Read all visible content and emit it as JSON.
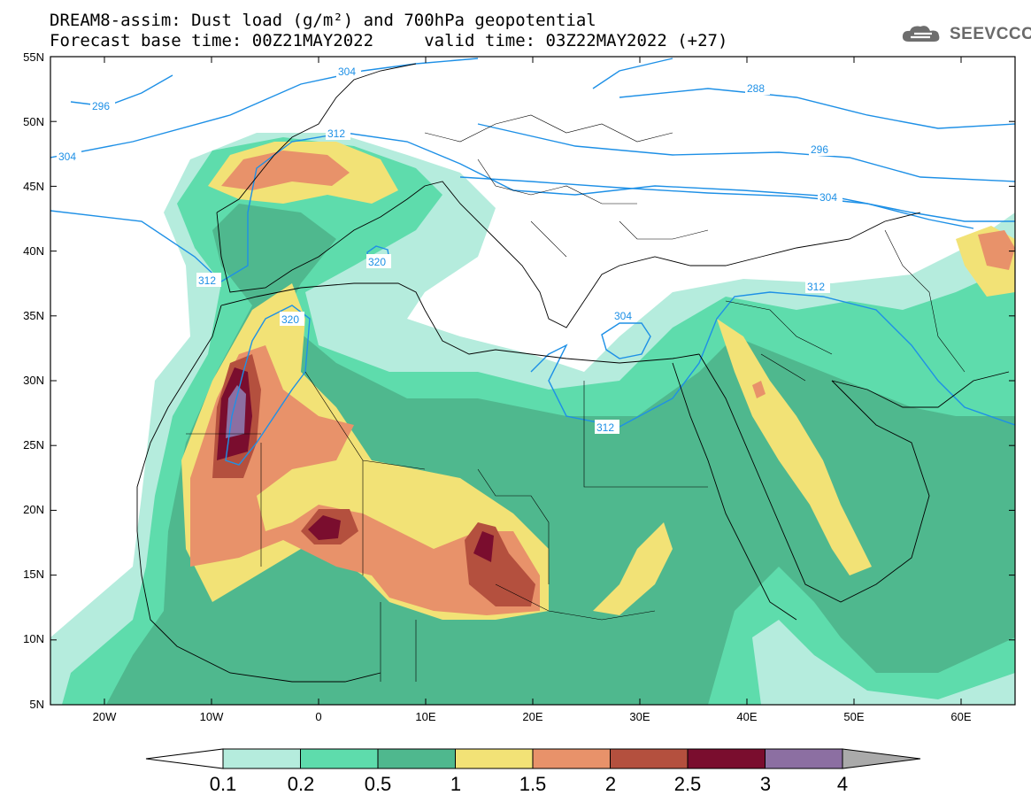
{
  "header": {
    "title_line1": "DREAM8-assim: Dust load (g/m²) and 700hPa geopotential",
    "title_line2": "Forecast base time: 00Z21MAY2022     valid time: 03Z22MAY2022 (+27)",
    "logo_text": "SEEVCCC"
  },
  "map": {
    "lat_ticks": [
      "55N",
      "50N",
      "45N",
      "40N",
      "35N",
      "30N",
      "25N",
      "20N",
      "15N",
      "10N",
      "5N"
    ],
    "lon_ticks": [
      "20W",
      "10W",
      "0",
      "10E",
      "20E",
      "30E",
      "40E",
      "50E",
      "60E"
    ],
    "contour_labels": [
      "296",
      "304",
      "304",
      "312",
      "320",
      "320",
      "304",
      "312",
      "288",
      "296",
      "304",
      "312",
      "312"
    ],
    "colors": {
      "contour": "#1e90e6",
      "c_0_1": "#b5ecdd",
      "c_0_2": "#5edcac",
      "c_0_5": "#4fb88e",
      "c_1": "#f2e276",
      "c_1_5": "#e8926a",
      "c_2": "#b4503e",
      "c_2_5": "#7a0d2e",
      "c_3": "#8c6fa2",
      "c_4": "#aaaaaa"
    }
  },
  "colorbar": {
    "labels": [
      "0.1",
      "0.2",
      "0.5",
      "1",
      "1.5",
      "2",
      "2.5",
      "3",
      "4"
    ],
    "colors": [
      "#b5ecdd",
      "#5edcac",
      "#4fb88e",
      "#f2e276",
      "#e8926a",
      "#b4503e",
      "#7a0d2e",
      "#8c6fa2"
    ],
    "over_color": "#aaaaaa",
    "under_color": "#ffffff"
  }
}
